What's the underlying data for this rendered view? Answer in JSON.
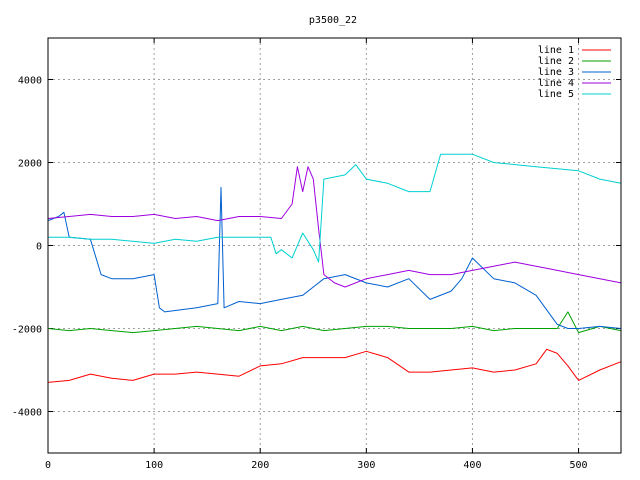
{
  "chart_data": {
    "type": "line",
    "title": "p3500_22",
    "xlabel": "",
    "ylabel": "",
    "xlim": [
      0,
      540
    ],
    "ylim": [
      -5000,
      5000
    ],
    "xticks": [
      0,
      100,
      200,
      300,
      400,
      500
    ],
    "yticks": [
      -4000,
      -2000,
      0,
      2000,
      4000
    ],
    "grid": true,
    "legend_position": "top-right",
    "series": [
      {
        "name": "line 1",
        "color": "#ff0000",
        "x": [
          0,
          20,
          40,
          60,
          80,
          100,
          120,
          140,
          160,
          180,
          200,
          220,
          240,
          260,
          280,
          300,
          320,
          340,
          360,
          380,
          400,
          420,
          440,
          460,
          470,
          480,
          490,
          500,
          520,
          540
        ],
        "values": [
          -3300,
          -3250,
          -3100,
          -3200,
          -3250,
          -3100,
          -3100,
          -3050,
          -3100,
          -3150,
          -2900,
          -2850,
          -2700,
          -2700,
          -2700,
          -2550,
          -2700,
          -3050,
          -3050,
          -3000,
          -2950,
          -3050,
          -3000,
          -2850,
          -2500,
          -2600,
          -2900,
          -3250,
          -3000,
          -2800
        ]
      },
      {
        "name": "line 2",
        "color": "#00a000",
        "x": [
          0,
          20,
          40,
          60,
          80,
          100,
          120,
          140,
          160,
          180,
          200,
          220,
          240,
          260,
          280,
          300,
          320,
          340,
          360,
          380,
          400,
          420,
          440,
          460,
          480,
          490,
          500,
          520,
          540
        ],
        "values": [
          -2000,
          -2050,
          -2000,
          -2050,
          -2100,
          -2050,
          -2000,
          -1950,
          -2000,
          -2050,
          -1950,
          -2050,
          -1950,
          -2050,
          -2000,
          -1950,
          -1950,
          -2000,
          -2000,
          -2000,
          -1950,
          -2050,
          -2000,
          -2000,
          -2000,
          -1600,
          -2100,
          -1950,
          -2050
        ]
      },
      {
        "name": "line 3",
        "color": "#0060d0",
        "x": [
          0,
          10,
          15,
          20,
          40,
          50,
          60,
          80,
          100,
          105,
          110,
          140,
          160,
          163,
          166,
          180,
          200,
          220,
          240,
          250,
          260,
          280,
          300,
          320,
          340,
          360,
          380,
          390,
          400,
          420,
          440,
          460,
          480,
          490,
          500,
          520,
          540
        ],
        "values": [
          600,
          700,
          800,
          200,
          150,
          -700,
          -800,
          -800,
          -700,
          -1500,
          -1600,
          -1500,
          -1400,
          1400,
          -1500,
          -1350,
          -1400,
          -1300,
          -1200,
          -1000,
          -800,
          -700,
          -900,
          -1000,
          -800,
          -1300,
          -1100,
          -800,
          -300,
          -800,
          -900,
          -1200,
          -1900,
          -2000,
          -2000,
          -1950,
          -2000
        ]
      },
      {
        "name": "line 4",
        "color": "#a000e0",
        "x": [
          0,
          20,
          40,
          60,
          80,
          100,
          120,
          140,
          160,
          180,
          200,
          220,
          230,
          235,
          240,
          245,
          250,
          255,
          260,
          270,
          280,
          300,
          320,
          340,
          360,
          380,
          400,
          420,
          440,
          460,
          480,
          500,
          520,
          540
        ],
        "values": [
          650,
          700,
          750,
          700,
          700,
          750,
          650,
          700,
          600,
          700,
          700,
          650,
          1000,
          1900,
          1300,
          1900,
          1600,
          400,
          -700,
          -900,
          -1000,
          -800,
          -700,
          -600,
          -700,
          -700,
          -600,
          -500,
          -400,
          -500,
          -600,
          -700,
          -800,
          -900
        ]
      },
      {
        "name": "line 5",
        "color": "#00d0d0",
        "x": [
          0,
          20,
          40,
          60,
          80,
          100,
          120,
          140,
          160,
          180,
          200,
          210,
          215,
          220,
          230,
          240,
          250,
          255,
          260,
          280,
          290,
          300,
          320,
          340,
          360,
          370,
          380,
          400,
          420,
          440,
          460,
          480,
          500,
          520,
          540
        ],
        "values": [
          200,
          200,
          150,
          150,
          100,
          50,
          150,
          100,
          200,
          200,
          200,
          200,
          -200,
          -100,
          -300,
          300,
          -100,
          -400,
          1600,
          1700,
          1950,
          1600,
          1500,
          1300,
          1300,
          2200,
          2200,
          2200,
          2000,
          1950,
          1900,
          1850,
          1800,
          1600,
          1500
        ]
      }
    ]
  }
}
